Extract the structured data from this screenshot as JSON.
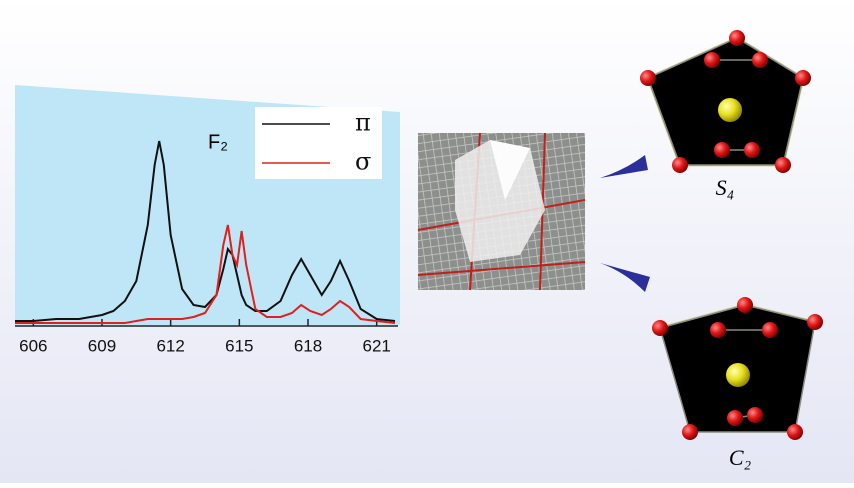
{
  "chart_data": {
    "type": "line",
    "annotation": "F₂",
    "x": [
      605.2,
      606,
      607,
      608,
      609,
      609.5,
      610,
      610.5,
      611,
      611.3,
      611.5,
      611.7,
      612,
      612.5,
      613,
      613.5,
      614,
      614.3,
      614.5,
      614.7,
      614.9,
      615.1,
      615.3,
      615.7,
      616.2,
      616.8,
      617.3,
      617.7,
      618.1,
      618.6,
      619,
      619.4,
      619.8,
      620.3,
      621,
      621.8
    ],
    "series": [
      {
        "name": "π",
        "color": "#111111",
        "values": [
          0.02,
          0.02,
          0.03,
          0.03,
          0.05,
          0.07,
          0.12,
          0.22,
          0.5,
          0.8,
          0.92,
          0.8,
          0.45,
          0.18,
          0.1,
          0.09,
          0.15,
          0.28,
          0.38,
          0.35,
          0.25,
          0.15,
          0.1,
          0.07,
          0.07,
          0.12,
          0.25,
          0.33,
          0.25,
          0.15,
          0.22,
          0.32,
          0.22,
          0.08,
          0.03,
          0.02
        ]
      },
      {
        "name": "σ",
        "color": "#e0201c",
        "values": [
          0.01,
          0.01,
          0.01,
          0.01,
          0.01,
          0.01,
          0.01,
          0.02,
          0.03,
          0.03,
          0.03,
          0.03,
          0.03,
          0.03,
          0.04,
          0.06,
          0.15,
          0.4,
          0.5,
          0.35,
          0.3,
          0.47,
          0.3,
          0.08,
          0.04,
          0.04,
          0.06,
          0.1,
          0.07,
          0.05,
          0.08,
          0.12,
          0.09,
          0.03,
          0.02,
          0.01
        ]
      }
    ],
    "xlim": [
      605.2,
      621.8
    ],
    "xticks": [
      606,
      609,
      612,
      615,
      618,
      621
    ],
    "ylim": [
      0,
      1
    ]
  },
  "structures": [
    {
      "label": "S₄"
    },
    {
      "label": "C₂"
    }
  ]
}
